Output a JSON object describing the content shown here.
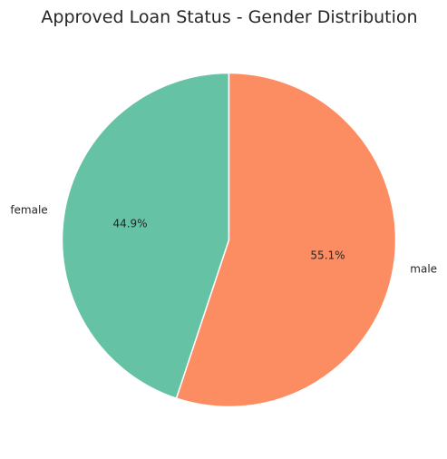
{
  "chart_data": {
    "type": "pie",
    "title": "Approved Loan Status - Gender Distribution",
    "start_angle": "top",
    "direction": "counterclockwise",
    "slices": [
      {
        "label": "female",
        "value": 44.9,
        "percent_label": "44.9%",
        "color": "#66c2a5"
      },
      {
        "label": "male",
        "value": 55.1,
        "percent_label": "55.1%",
        "color": "#fc8d62"
      }
    ],
    "edge_color": "#ffffff"
  }
}
